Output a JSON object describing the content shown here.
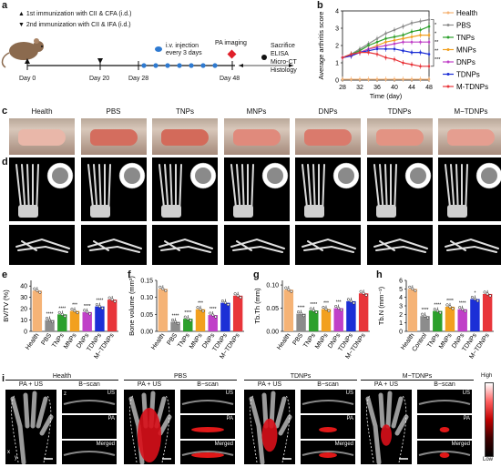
{
  "panel_labels": {
    "a": "a",
    "b": "b",
    "c": "c",
    "d": "d",
    "e": "e",
    "f": "f",
    "g": "g",
    "h": "h",
    "i": "i"
  },
  "timeline": {
    "legend_1": "1st immunization with CII & CFA (i.d.)",
    "legend_2": "2nd immunization with CII & IFA (i.d.)",
    "days": [
      "Day 0",
      "Day 20",
      "Day 28",
      "Day 48"
    ],
    "injection": "i.v. injection every 3 days",
    "pa_imaging": "PA imaging",
    "endpoint": [
      "Sacrifice",
      "ELISA",
      "Micro-CT",
      "Histology"
    ]
  },
  "groups": [
    "Health",
    "PBS",
    "TNPs",
    "MNPs",
    "DNPs",
    "TDNPs",
    "M−TDNPs"
  ],
  "colors": {
    "Health": "#f5b376",
    "PBS": "#8c8c8c",
    "TNPs": "#2ca02c",
    "MNPs": "#f2a01f",
    "DNPs": "#c040c8",
    "TDNPs": "#1c2fd6",
    "M-TDNPs": "#e8353a",
    "injection_dot": "#2e7ad1",
    "pa_marker": "#e0202a"
  },
  "chart_data": [
    {
      "type": "line",
      "panel": "b",
      "xlabel": "Time (day)",
      "ylabel": "Average arthritis score",
      "x": [
        28,
        30,
        32,
        34,
        36,
        38,
        40,
        42,
        44,
        46,
        48
      ],
      "xticks": [
        28,
        32,
        36,
        40,
        44,
        48
      ],
      "yticks": [
        0,
        1,
        2,
        3,
        4
      ],
      "ylim": [
        0,
        4
      ],
      "series": [
        {
          "name": "Health",
          "values": [
            0.05,
            0.05,
            0.05,
            0.05,
            0.05,
            0.05,
            0.05,
            0.05,
            0.05,
            0.05,
            0.05
          ]
        },
        {
          "name": "PBS",
          "values": [
            1.3,
            1.5,
            1.8,
            2.1,
            2.4,
            2.7,
            2.9,
            3.1,
            3.3,
            3.4,
            3.5
          ]
        },
        {
          "name": "TNPs",
          "values": [
            1.3,
            1.5,
            1.7,
            2.0,
            2.2,
            2.4,
            2.5,
            2.6,
            2.8,
            2.9,
            3.1
          ]
        },
        {
          "name": "MNPs",
          "values": [
            1.3,
            1.4,
            1.6,
            1.8,
            2.0,
            2.2,
            2.3,
            2.4,
            2.5,
            2.6,
            2.6
          ]
        },
        {
          "name": "DNPs",
          "values": [
            1.3,
            1.4,
            1.6,
            1.8,
            1.9,
            2.0,
            2.1,
            2.2,
            2.2,
            2.2,
            2.2
          ]
        },
        {
          "name": "TDNPs",
          "values": [
            1.3,
            1.4,
            1.6,
            1.7,
            1.8,
            1.8,
            1.8,
            1.7,
            1.6,
            1.6,
            1.5
          ]
        },
        {
          "name": "M-TDNPs",
          "values": [
            1.3,
            1.5,
            1.6,
            1.6,
            1.5,
            1.3,
            1.2,
            1.0,
            0.9,
            0.8,
            0.8
          ]
        }
      ],
      "significance": [
        "*",
        "*",
        "**",
        "**",
        "***"
      ]
    },
    {
      "type": "bar",
      "panel": "e",
      "ylabel": "BV/TV (%)",
      "categories": [
        "Health",
        "PBS",
        "TNPs",
        "MNPs",
        "DNPs",
        "TDNPs",
        "M−TDNPs"
      ],
      "values": [
        36,
        10,
        15,
        18,
        17,
        22,
        28
      ],
      "yticks": [
        0,
        10,
        20,
        30,
        40
      ],
      "ylim": [
        0,
        45
      ],
      "significance": [
        "",
        "****",
        "****",
        "***",
        "****",
        "****",
        ""
      ]
    },
    {
      "type": "bar",
      "panel": "f",
      "ylabel": "Bone volume (mm³)",
      "categories": [
        "Health",
        "PBS",
        "TNPs",
        "MNPs",
        "DNPs",
        "TDNPs",
        "M−TDNPs"
      ],
      "values": [
        0.125,
        0.028,
        0.037,
        0.065,
        0.048,
        0.084,
        0.105
      ],
      "yticks": [
        0.0,
        0.05,
        0.1,
        0.15
      ],
      "ylim": [
        0,
        0.15
      ],
      "significance": [
        "",
        "****",
        "****",
        "***",
        "****",
        "",
        ""
      ]
    },
    {
      "type": "bar",
      "panel": "g",
      "ylabel": "Tb.Th (mm)",
      "categories": [
        "Health",
        "PBS",
        "TNPs",
        "MNPs",
        "DNPs",
        "TDNPs",
        "M−TDNPs"
      ],
      "values": [
        0.09,
        0.038,
        0.045,
        0.048,
        0.05,
        0.065,
        0.082
      ],
      "yticks": [
        0.0,
        0.05,
        0.1
      ],
      "ylim": [
        0,
        0.11
      ],
      "significance": [
        "",
        "****",
        "****",
        "***",
        "***",
        "",
        ""
      ]
    },
    {
      "type": "bar",
      "panel": "h",
      "ylabel": "Tb.N (mm⁻¹)",
      "categories": [
        "Health",
        "Control",
        "TNPs",
        "MNPs",
        "DNPs",
        "TDNPs",
        "M−TDNPs"
      ],
      "values": [
        5.0,
        1.8,
        2.4,
        2.9,
        2.6,
        3.8,
        4.4
      ],
      "yticks": [
        0,
        1,
        2,
        3,
        4,
        5,
        6
      ],
      "ylim": [
        0,
        6
      ],
      "significance": [
        "",
        "****",
        "****",
        "****",
        "****",
        "*",
        ""
      ]
    }
  ],
  "panel_i": {
    "groups": [
      "Health",
      "PBS",
      "TDNPs",
      "M−TDNPs"
    ],
    "col_pa_us": "PA + US",
    "col_bscan": "B−scan",
    "rows": [
      "US",
      "PA",
      "Merged"
    ],
    "colorbar_high": "High",
    "colorbar_low": "Low",
    "axis_x": "x",
    "axis_y": "y",
    "axis_z": "z"
  }
}
